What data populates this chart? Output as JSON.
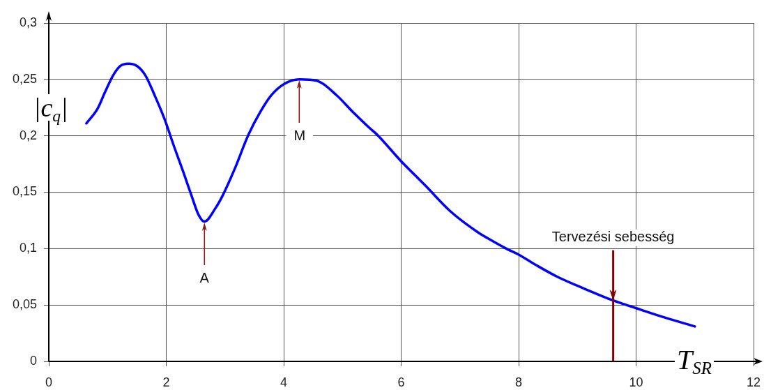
{
  "chart_data": {
    "type": "line",
    "xlabel": "T$_{SR}$",
    "ylabel": "|c$_{q}$|",
    "x": [
      0.64,
      0.83,
      0.96,
      1.1,
      1.22,
      1.36,
      1.5,
      1.64,
      1.81,
      1.97,
      2.13,
      2.29,
      2.43,
      2.55,
      2.65,
      2.84,
      2.96,
      3.16,
      3.4,
      3.6,
      3.79,
      4.01,
      4.27,
      4.55,
      4.9,
      5.18,
      5.44,
      5.61,
      5.99,
      6.41,
      6.84,
      7.32,
      7.48,
      7.79,
      7.99,
      8.31,
      8.66,
      9.14,
      9.61,
      10.01,
      10.48,
      11.0
    ],
    "series": [
      {
        "color": "#0000ff",
        "values": [
          0.211,
          0.224,
          0.239,
          0.254,
          0.262,
          0.264,
          0.262,
          0.254,
          0.235,
          0.215,
          0.191,
          0.168,
          0.147,
          0.13,
          0.124,
          0.136,
          0.147,
          0.17,
          0.201,
          0.221,
          0.236,
          0.246,
          0.25,
          0.249,
          0.236,
          0.221,
          0.208,
          0.2,
          0.178,
          0.156,
          0.133,
          0.114,
          0.109,
          0.1,
          0.095,
          0.085,
          0.075,
          0.064,
          0.054,
          0.047,
          0.039,
          0.031
        ]
      }
    ],
    "xlim": [
      0,
      12
    ],
    "xticks": [
      0,
      2,
      4,
      6,
      8,
      10,
      12
    ],
    "ylim": [
      0,
      0.3
    ],
    "yticks": [
      0,
      {
        "value": 0.05,
        "label": "0,05"
      },
      {
        "value": 0.1,
        "label": "0,1"
      },
      {
        "value": 0.15,
        "label": "0,15"
      },
      {
        "value": 0.2,
        "label": "0,2"
      },
      {
        "value": 0.25,
        "label": "0,25"
      },
      {
        "value": 0.3,
        "label": "0,3"
      }
    ],
    "grid": true,
    "line_style": "solid",
    "ref_lines": [
      {
        "axis": "x",
        "value": 9.61,
        "label": "Tervezési sebesség",
        "color": "#800000"
      }
    ],
    "annotations": [
      {
        "text": "A",
        "x": 2.65,
        "y": 0.124
      },
      {
        "text": "M",
        "x": 4.27,
        "y": 0.25
      }
    ]
  }
}
